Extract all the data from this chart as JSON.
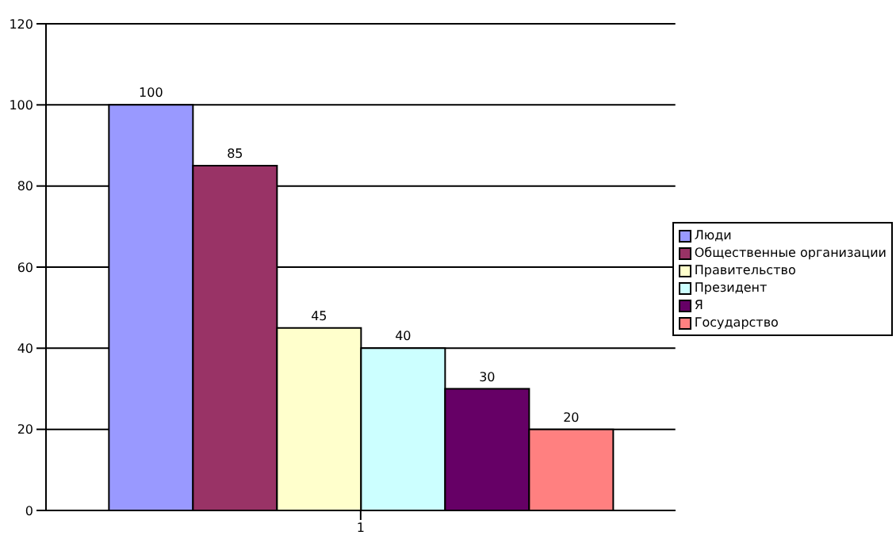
{
  "chart_data": {
    "type": "bar",
    "categories": [
      "1"
    ],
    "series": [
      {
        "name": "Люди",
        "color": "#9999ff",
        "values": [
          100
        ]
      },
      {
        "name": "Общественные организации",
        "color": "#993366",
        "values": [
          85
        ]
      },
      {
        "name": "Правительство",
        "color": "#ffffcc",
        "values": [
          45
        ]
      },
      {
        "name": "Президент",
        "color": "#ccffff",
        "values": [
          40
        ]
      },
      {
        "name": "Я",
        "color": "#660066",
        "values": [
          30
        ]
      },
      {
        "name": "Государство",
        "color": "#ff8080",
        "values": [
          20
        ]
      }
    ],
    "ylim": [
      0,
      120
    ],
    "yticks": [
      0,
      20,
      40,
      60,
      80,
      100,
      120
    ],
    "grid": "y",
    "legend": "right",
    "data_labels": true
  }
}
